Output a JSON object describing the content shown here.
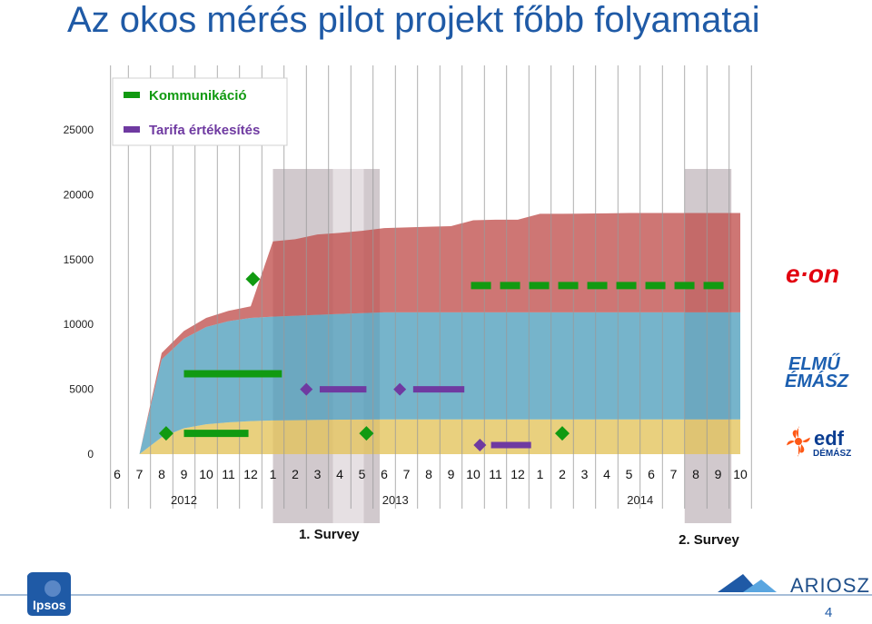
{
  "title": "Az okos mérés pilot projekt főbb folyamatai",
  "page_number": "4",
  "logos": {
    "eon": "e·on",
    "elmu_line1": "ELMŰ",
    "elmu_line2": "ÉMÁSZ",
    "edf_line1": "edf",
    "edf_line2": "DÉMÁSZ",
    "ipsos": "Ipsos",
    "ariosz": "ARIOSZ"
  },
  "colors": {
    "eon": "#c0504d",
    "elmu": "#4f9fbd",
    "edf": "#e3c35a",
    "kommunikacio": "#119a11",
    "tarifa": "#6f3aa1",
    "title": "#1f5aa6"
  },
  "chart_data": {
    "type": "area",
    "title": "Az okos mérés pilot projekt főbb folyamatai",
    "ylim": [
      0,
      25000
    ],
    "yticks": [
      "0",
      "5000",
      "10000",
      "15000",
      "20000",
      "25000"
    ],
    "grid": "vertical",
    "legend_position": "top-left",
    "legend": [
      {
        "label": "Kommunikáció",
        "color": "#119a11"
      },
      {
        "label": "Tarifa értékesítés",
        "color": "#6f3aa1"
      }
    ],
    "months": [
      "6",
      "7",
      "8",
      "9",
      "10",
      "11",
      "12",
      "1",
      "2",
      "3",
      "4",
      "5",
      "6",
      "7",
      "8",
      "9",
      "10",
      "11",
      "12",
      "1",
      "2",
      "3",
      "4",
      "5",
      "6",
      "7",
      "8",
      "9",
      "10"
    ],
    "years": [
      {
        "label": "2012",
        "start": 0,
        "end": 6
      },
      {
        "label": "2013",
        "start": 7,
        "end": 18
      },
      {
        "label": "2014",
        "start": 19,
        "end": 28
      }
    ],
    "series": [
      {
        "color": "#e3c35a",
        "values": [
          0,
          0,
          1300,
          2000,
          2300,
          2450,
          2550,
          2600,
          2620,
          2640,
          2660,
          2670,
          2680,
          2680,
          2680,
          2680,
          2680,
          2680,
          2680,
          2680,
          2680,
          2680,
          2680,
          2680,
          2680,
          2680,
          2680,
          2680,
          2680
        ]
      },
      {
        "color": "#4f9fbd",
        "values": [
          0,
          0,
          6000,
          6900,
          7500,
          7800,
          7950,
          8000,
          8050,
          8100,
          8150,
          8200,
          8250,
          8250,
          8250,
          8250,
          8250,
          8250,
          8250,
          8250,
          8250,
          8250,
          8250,
          8250,
          8250,
          8250,
          8250,
          8250,
          8250
        ]
      },
      {
        "color": "#c0504d",
        "values": [
          0,
          0,
          500,
          600,
          700,
          800,
          900,
          5800,
          5900,
          6200,
          6250,
          6350,
          6500,
          6550,
          6600,
          6650,
          7100,
          7150,
          7150,
          7600,
          7600,
          7620,
          7640,
          7660,
          7660,
          7660,
          7660,
          7660,
          7660
        ]
      }
    ],
    "kommunikacio_bars": [
      {
        "start": 3.0,
        "end": 7.4,
        "value": 6200
      },
      {
        "start": 3.0,
        "end": 5.9,
        "value": 1600
      },
      {
        "start": 15.9,
        "end": 27.6,
        "value": 13000,
        "dashed": true
      }
    ],
    "kommunikacio_markers": [
      {
        "x": 2.2,
        "value": 1600
      },
      {
        "x": 6.1,
        "value": 13500
      },
      {
        "x": 11.2,
        "value": 1600
      },
      {
        "x": 20.0,
        "value": 1600
      }
    ],
    "tarifa_bars": [
      {
        "start": 9.1,
        "end": 11.2,
        "value": 5000
      },
      {
        "start": 13.3,
        "end": 15.6,
        "value": 5000
      },
      {
        "start": 16.8,
        "end": 18.6,
        "value": 700
      }
    ],
    "tarifa_markers": [
      {
        "x": 8.5,
        "value": 5000
      },
      {
        "x": 12.7,
        "value": 5000
      },
      {
        "x": 16.3,
        "value": 700
      }
    ],
    "survey_periods": [
      {
        "label": "1. Survey",
        "start": 7.0,
        "end": 11.8
      },
      {
        "label": "2. Survey",
        "start": 25.5,
        "end": 27.6
      }
    ]
  }
}
